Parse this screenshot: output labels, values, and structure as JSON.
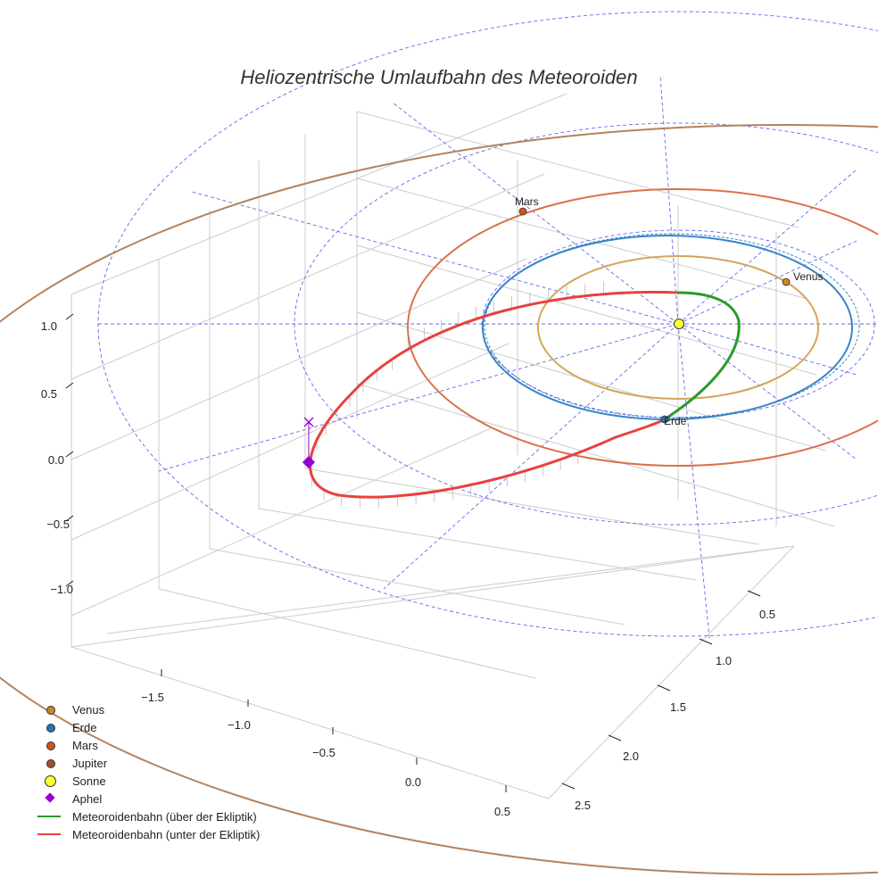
{
  "chart_data": {
    "type": "line",
    "title": "Heliozentrische Umlaufbahn des Meteoroiden",
    "axes": {
      "x": {
        "ticks": [
          -1.5,
          -1.0,
          -0.5,
          0.0,
          0.5
        ],
        "tick_labels": [
          "−1.5",
          "−1.0",
          "−0.5",
          "0.0",
          "0.5"
        ]
      },
      "y": {
        "ticks": [
          0.5,
          1.0,
          1.5,
          2.0,
          2.5
        ],
        "tick_labels": [
          "0.5",
          "1.0",
          "1.5",
          "2.0",
          "2.5"
        ]
      },
      "z": {
        "ticks": [
          1.0,
          0.5,
          0.0,
          -0.5,
          -1.0
        ],
        "tick_labels": [
          "1.0",
          "0.5",
          "0.0",
          "−0.5",
          "−1.0"
        ]
      }
    },
    "grid": true,
    "legend_position": "bottom-left",
    "planets": [
      {
        "name": "Venus",
        "label": "Venus",
        "orbit_radius_au": 0.72,
        "orbit_color": "#d4a55a",
        "marker_color": "#c8862a"
      },
      {
        "name": "Erde",
        "label": "Erde",
        "orbit_radius_au": 1.0,
        "orbit_color": "#3a85c7",
        "marker_color": "#1f77b4"
      },
      {
        "name": "Mars",
        "label": "Mars",
        "orbit_radius_au": 1.52,
        "orbit_color": "#d9714d",
        "marker_color": "#d2531d"
      },
      {
        "name": "Jupiter",
        "label": "",
        "orbit_radius_au": 5.2,
        "orbit_color": "#b5825c",
        "marker_color": "#a0522d"
      }
    ],
    "sun": {
      "name": "Sonne",
      "color": "#ffff33"
    },
    "aphel": {
      "name": "Aphel",
      "color": "#9400d3"
    },
    "meteoroid_orbit": {
      "above": {
        "name": "Meteoroidenbahn (über der Ekliptik)",
        "color": "#2a9a2a"
      },
      "below": {
        "name": "Meteoroidenbahn (unter der Ekliptik)",
        "color": "#e8413e"
      }
    }
  },
  "legend": [
    {
      "label": "Venus",
      "kind": "dot",
      "color": "#c8862a"
    },
    {
      "label": "Erde",
      "kind": "dot",
      "color": "#1f77b4"
    },
    {
      "label": "Mars",
      "kind": "dot",
      "color": "#d2531d"
    },
    {
      "label": "Jupiter",
      "kind": "dot",
      "color": "#a0522d"
    },
    {
      "label": "Sonne",
      "kind": "bigdot",
      "color": "#ffff33"
    },
    {
      "label": "Aphel",
      "kind": "diamond",
      "color": "#9400d3"
    },
    {
      "label": "Meteoroidenbahn (über der Ekliptik)",
      "kind": "line",
      "color": "#2a9a2a"
    },
    {
      "label": "Meteoroidenbahn (unter der Ekliptik)",
      "kind": "line",
      "color": "#e8413e"
    }
  ]
}
